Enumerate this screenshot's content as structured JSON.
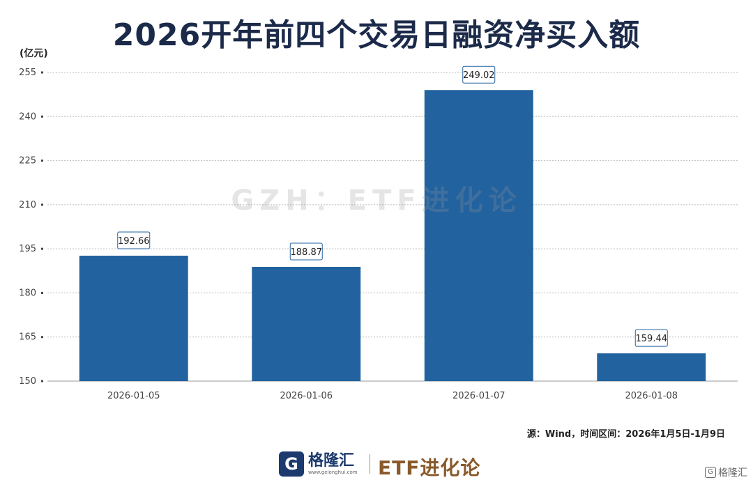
{
  "chart_data": {
    "type": "bar",
    "title": "2026开年前四个交易日融资净买入额",
    "unit_label": "(亿元)",
    "categories": [
      "2026-01-05",
      "2026-01-06",
      "2026-01-07",
      "2026-01-08"
    ],
    "values": [
      192.66,
      188.87,
      249.02,
      159.44
    ],
    "data_labels": [
      "192.66",
      "188.87",
      "249.02",
      "159.44"
    ],
    "ylim": [
      150,
      255
    ],
    "yticks": [
      150,
      165,
      180,
      195,
      210,
      225,
      240,
      255
    ],
    "grid": true,
    "bar_color": "#22629f"
  },
  "watermark": "GZH：ETF进化论",
  "source": "源：Wind，时间区间：2026年1月5日-1月9日",
  "footer": {
    "logo_glyph": "G",
    "brand_name": "格隆汇",
    "brand_url": "www.gelonghui.com",
    "brand_right": "ETF进化论"
  },
  "corner_mark": {
    "icon": "G",
    "text": "格隆汇"
  }
}
